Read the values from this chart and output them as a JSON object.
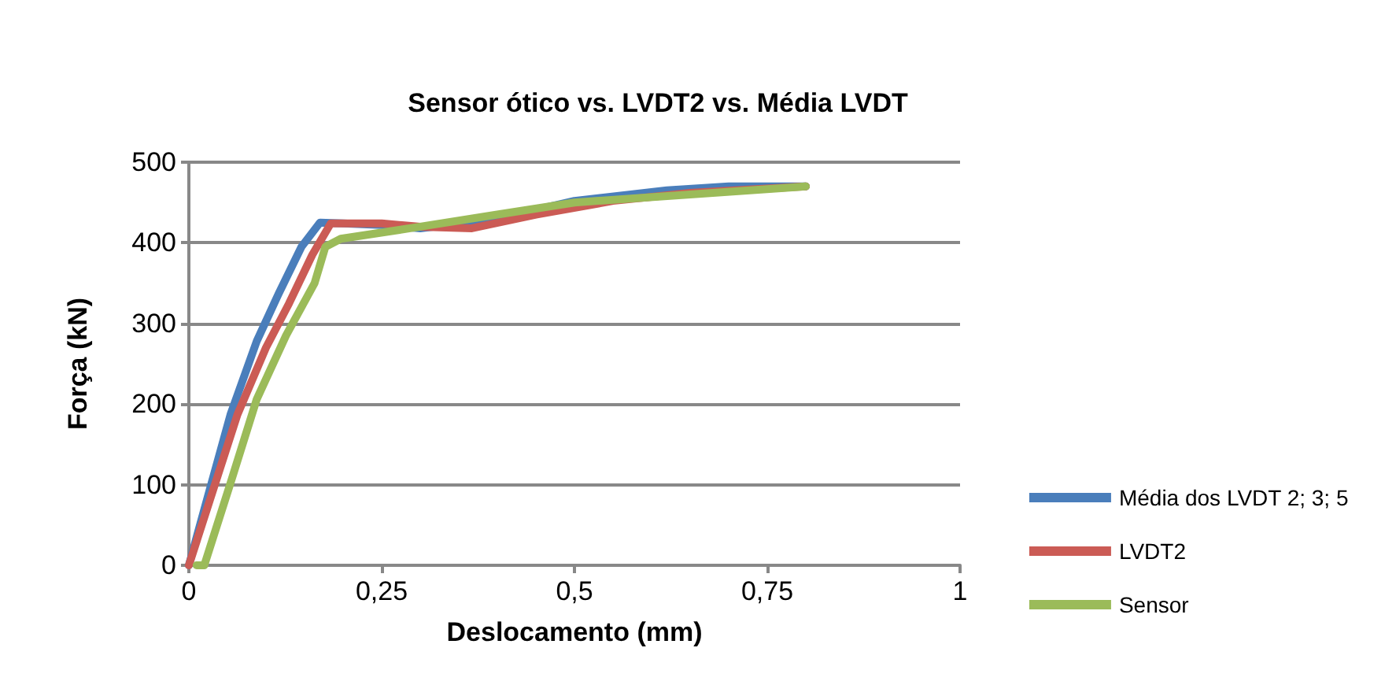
{
  "chart_data": {
    "type": "line",
    "title": "Sensor ótico vs. LVDT2 vs. Média LVDT",
    "xlabel": "Deslocamento (mm)",
    "ylabel": "Força (kN)",
    "xlim": [
      0,
      1
    ],
    "xticks": [
      0,
      {
        "value": 0.25,
        "label": "0,25"
      },
      {
        "value": 0.5,
        "label": "0,5"
      },
      {
        "value": 0.75,
        "label": "0,75"
      },
      1
    ],
    "ylim": [
      0,
      500
    ],
    "yticks": [
      0,
      100,
      200,
      300,
      400,
      500
    ],
    "grid": "y",
    "legend": "right",
    "marker": "none",
    "line_style": "solid",
    "series": [
      {
        "name": "Média dos LVDT 2; 3; 5",
        "color": "#4a7ebb",
        "x": [
          0,
          0.054,
          0.088,
          0.116,
          0.146,
          0.17,
          0.2,
          0.25,
          0.3,
          0.4,
          0.5,
          0.62,
          0.7,
          0.8
        ],
        "values": [
          0,
          187,
          278,
          336,
          395,
          425,
          424,
          422,
          418,
          430,
          452,
          465,
          470,
          470
        ]
      },
      {
        "name": "LVDT2",
        "color": "#cb5b55",
        "x": [
          0,
          0.063,
          0.1,
          0.13,
          0.16,
          0.184,
          0.25,
          0.3,
          0.367,
          0.45,
          0.55,
          0.65,
          0.8
        ],
        "values": [
          0,
          187,
          270,
          325,
          385,
          424,
          424,
          420,
          418,
          435,
          452,
          462,
          470
        ]
      },
      {
        "name": "Sensor",
        "color": "#9bbb59",
        "x": [
          0.01,
          0.02,
          0.054,
          0.088,
          0.126,
          0.163,
          0.177,
          0.197,
          0.3,
          0.4,
          0.5,
          0.65,
          0.8
        ],
        "values": [
          0,
          0,
          102,
          206,
          285,
          350,
          395,
          405,
          420,
          435,
          450,
          460,
          470
        ]
      }
    ]
  }
}
